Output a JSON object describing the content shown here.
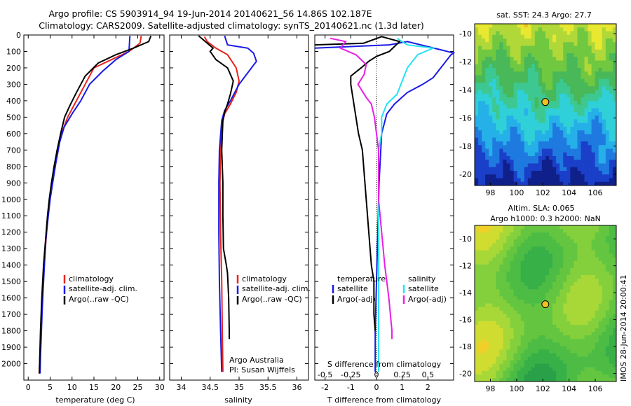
{
  "title": {
    "line1": "Argo profile: CS 5903914_94 19-Jun-2014 20140621_56 14.86S 102.187E",
    "line2": "Climatology: CARS2009. Satellite-adjusted climatology: synTS_20140621.nc (1.3d later)"
  },
  "credit": {
    "line1": "Argo Australia",
    "line2": "PI: Susan Wijffels"
  },
  "stamp": "IMOS 28-Jun-2014 20:00:41",
  "maps": {
    "sst_title": "sat. SST: 24.3 Argo: 27.7",
    "sla_title_1": "Altim. SLA: 0.065",
    "sla_title_2": "Argo h1000: 0.3 h2000: NaN"
  },
  "colors": {
    "climatology": "#e8251e",
    "satellite": "#1a1ae6",
    "argo": "#000000",
    "sal_sat": "#24e4f0",
    "sal_argo": "#e81ee8"
  },
  "chart_data": [
    {
      "type": "line",
      "name": "temperature",
      "xlabel": "temperature (deg C)",
      "ylabel": "",
      "xlim": [
        -1,
        31
      ],
      "ylim": [
        2100,
        0
      ],
      "xticks": [
        "0",
        "5",
        "10",
        "15",
        "20",
        "25",
        "30"
      ],
      "xtickvals": [
        0,
        5,
        10,
        15,
        20,
        25,
        30
      ],
      "yticks": [
        "0",
        "100",
        "200",
        "300",
        "400",
        "500",
        "600",
        "700",
        "800",
        "900",
        "1000",
        "1100",
        "1200",
        "1300",
        "1400",
        "1500",
        "1600",
        "1700",
        "1800",
        "1900",
        "2000"
      ],
      "ytickvals": [
        0,
        100,
        200,
        300,
        400,
        500,
        600,
        700,
        800,
        900,
        1000,
        1100,
        1200,
        1300,
        1400,
        1500,
        1600,
        1700,
        1800,
        1900,
        2000
      ],
      "legend": [
        "climatology",
        "satellite-adj. clim.",
        "Argo(..raw -QC)"
      ],
      "series": [
        {
          "name": "climatology",
          "color": "#e8251e",
          "points": [
            [
              25.8,
              5
            ],
            [
              25.5,
              50
            ],
            [
              23,
              100
            ],
            [
              19,
              150
            ],
            [
              15,
              200
            ],
            [
              13,
              300
            ],
            [
              11,
              400
            ],
            [
              9,
              500
            ],
            [
              7.6,
              600
            ],
            [
              6.6,
              700
            ],
            [
              6,
              800
            ],
            [
              5.4,
              900
            ],
            [
              4.9,
              1000
            ],
            [
              4.5,
              1100
            ],
            [
              4.2,
              1200
            ],
            [
              3.9,
              1300
            ],
            [
              3.6,
              1400
            ],
            [
              3.4,
              1500
            ],
            [
              3.2,
              1600
            ],
            [
              3.0,
              1700
            ],
            [
              2.9,
              1800
            ],
            [
              2.75,
              1900
            ],
            [
              2.6,
              2000
            ],
            [
              2.5,
              2060
            ]
          ]
        },
        {
          "name": "satellite-adj. clim.",
          "color": "#1a1ae6",
          "points": [
            [
              23.2,
              5
            ],
            [
              23,
              100
            ],
            [
              20,
              150
            ],
            [
              17,
              220
            ],
            [
              14,
              300
            ],
            [
              12,
              400
            ],
            [
              10,
              480
            ],
            [
              8.2,
              560
            ],
            [
              7.2,
              650
            ],
            [
              6.3,
              780
            ],
            [
              5.7,
              880
            ],
            [
              5.0,
              1000
            ],
            [
              4.5,
              1120
            ],
            [
              4.0,
              1250
            ],
            [
              3.7,
              1400
            ],
            [
              3.4,
              1550
            ],
            [
              3.15,
              1700
            ],
            [
              2.95,
              1850
            ],
            [
              2.8,
              1950
            ],
            [
              2.7,
              2060
            ]
          ]
        },
        {
          "name": "Argo(..raw -QC)",
          "color": "#000000",
          "points": [
            [
              28,
              5
            ],
            [
              27.5,
              40
            ],
            [
              24,
              80
            ],
            [
              20,
              120
            ],
            [
              16,
              170
            ],
            [
              13,
              250
            ],
            [
              11,
              350
            ],
            [
              9.5,
              430
            ],
            [
              8.3,
              500
            ],
            [
              7.4,
              600
            ],
            [
              6.6,
              700
            ],
            [
              5.9,
              800
            ],
            [
              5.3,
              900
            ],
            [
              4.8,
              1000
            ],
            [
              4.4,
              1100
            ],
            [
              4.1,
              1200
            ],
            [
              3.8,
              1300
            ],
            [
              3.5,
              1400
            ],
            [
              3.3,
              1500
            ],
            [
              3.1,
              1600
            ],
            [
              2.95,
              1700
            ],
            [
              2.8,
              1800
            ],
            [
              2.7,
              1900
            ],
            [
              2.6,
              2000
            ],
            [
              2.55,
              2060
            ]
          ]
        }
      ]
    },
    {
      "type": "line",
      "name": "salinity",
      "xlabel": "salinity",
      "ylabel": "",
      "xlim": [
        33.8,
        36.2
      ],
      "ylim": [
        2100,
        0
      ],
      "xticks": [
        "34",
        "34.5",
        "35",
        "35.5",
        "36"
      ],
      "xtickvals": [
        34,
        34.5,
        35,
        35.5,
        36
      ],
      "legend": [
        "climatology",
        "satellite-adj. clim.",
        "Argo(..raw -QC)"
      ],
      "series": [
        {
          "name": "climatology",
          "color": "#e8251e",
          "points": [
            [
              34.4,
              10
            ],
            [
              34.45,
              40
            ],
            [
              34.6,
              80
            ],
            [
              34.8,
              120
            ],
            [
              34.95,
              200
            ],
            [
              35,
              280
            ],
            [
              34.95,
              350
            ],
            [
              34.85,
              420
            ],
            [
              34.75,
              480
            ],
            [
              34.7,
              550
            ],
            [
              34.68,
              700
            ],
            [
              34.67,
              900
            ],
            [
              34.68,
              1200
            ],
            [
              34.7,
              1500
            ],
            [
              34.71,
              1800
            ],
            [
              34.72,
              2050
            ]
          ]
        },
        {
          "name": "satellite-adj. clim.",
          "color": "#1a1ae6",
          "points": [
            [
              34.75,
              5
            ],
            [
              34.8,
              60
            ],
            [
              35.15,
              80
            ],
            [
              35.25,
              110
            ],
            [
              35.3,
              160
            ],
            [
              35.15,
              230
            ],
            [
              35,
              300
            ],
            [
              34.85,
              400
            ],
            [
              34.75,
              460
            ],
            [
              34.7,
              520
            ],
            [
              34.66,
              700
            ],
            [
              34.65,
              900
            ],
            [
              34.65,
              1200
            ],
            [
              34.66,
              1500
            ],
            [
              34.68,
              1800
            ],
            [
              34.7,
              2050
            ]
          ]
        },
        {
          "name": "Argo(..raw -QC)",
          "color": "#000000",
          "points": [
            [
              34.3,
              5
            ],
            [
              34.45,
              50
            ],
            [
              34.55,
              80
            ],
            [
              34.5,
              100
            ],
            [
              34.6,
              150
            ],
            [
              34.8,
              200
            ],
            [
              34.9,
              280
            ],
            [
              34.85,
              360
            ],
            [
              34.8,
              420
            ],
            [
              34.75,
              470
            ],
            [
              34.72,
              520
            ],
            [
              34.7,
              700
            ],
            [
              34.72,
              900
            ],
            [
              34.72,
              1100
            ],
            [
              34.73,
              1300
            ],
            [
              34.78,
              1400
            ],
            [
              34.8,
              1450
            ],
            [
              34.82,
              1600
            ],
            [
              34.83,
              1800
            ],
            [
              34.83,
              1850
            ]
          ]
        }
      ]
    },
    {
      "type": "line",
      "name": "differences",
      "xlabel": "T difference from climatology",
      "x2label": "S difference from climatology",
      "xlim": [
        -2.4,
        3
      ],
      "ylim": [
        2100,
        0
      ],
      "xticks": [
        "-2",
        "-1",
        "0",
        "1",
        "2"
      ],
      "xtickvals": [
        -2,
        -1,
        0,
        1,
        2
      ],
      "x2ticks": [
        "-0.5",
        "-0.25",
        "0",
        "0.25",
        "0.5"
      ],
      "x2tickvals": [
        -0.5,
        -0.25,
        0,
        0.25,
        0.5
      ],
      "legend_groups": [
        {
          "heading": "temperature",
          "items": [
            "satellite",
            "Argo(-adj)"
          ]
        },
        {
          "heading": "salinity",
          "items": [
            "satellite",
            "Argo(-adj)"
          ]
        }
      ],
      "series": [
        {
          "name": "temperature satellite",
          "color": "#1a1ae6",
          "points": [
            [
              -2.4,
              80
            ],
            [
              0.5,
              60
            ],
            [
              1.2,
              40
            ],
            [
              2.5,
              90
            ],
            [
              3,
              110
            ],
            [
              2.9,
              120
            ],
            [
              2.7,
              160
            ],
            [
              2.5,
              200
            ],
            [
              2.2,
              260
            ],
            [
              1.8,
              300
            ],
            [
              1.2,
              350
            ],
            [
              0.7,
              420
            ],
            [
              0.4,
              480
            ],
            [
              0.2,
              600
            ],
            [
              0.1,
              900
            ],
            [
              0.05,
              1200
            ],
            [
              0,
              1500
            ],
            [
              -0.05,
              1800
            ],
            [
              -0.05,
              2050
            ]
          ]
        },
        {
          "name": "temperature Argo(-adj)",
          "color": "#000000",
          "points": [
            [
              -2.4,
              60
            ],
            [
              -0.5,
              50
            ],
            [
              0.2,
              10
            ],
            [
              0.9,
              40
            ],
            [
              0.5,
              100
            ],
            [
              0,
              130
            ],
            [
              -0.3,
              160
            ],
            [
              -0.6,
              200
            ],
            [
              -1,
              250
            ],
            [
              -1,
              300
            ],
            [
              -0.9,
              400
            ],
            [
              -0.8,
              500
            ],
            [
              -0.7,
              600
            ],
            [
              -0.55,
              700
            ],
            [
              -0.5,
              800
            ],
            [
              -0.45,
              900
            ],
            [
              -0.4,
              1000
            ],
            [
              -0.3,
              1200
            ],
            [
              -0.25,
              1300
            ],
            [
              -0.2,
              1400
            ],
            [
              -0.1,
              1500
            ],
            [
              -0.1,
              1700
            ],
            [
              -0.05,
              1800
            ]
          ]
        },
        {
          "name": "salinity satellite",
          "color": "#24e4f0",
          "points": [
            [
              0.2,
              20
            ],
            [
              0.3,
              60
            ],
            [
              0.55,
              80
            ],
            [
              0.4,
              120
            ],
            [
              0.3,
              200
            ],
            [
              0.25,
              280
            ],
            [
              0.2,
              360
            ],
            [
              0.1,
              420
            ],
            [
              0.05,
              500
            ],
            [
              0.05,
              600
            ],
            [
              0.02,
              700
            ],
            [
              0.02,
              900
            ],
            [
              0.02,
              1200
            ],
            [
              0.02,
              1500
            ],
            [
              0.02,
              1800
            ],
            [
              0.02,
              2050
            ]
          ]
        },
        {
          "name": "salinity Argo(-adj)",
          "color": "#e81ee8",
          "points": [
            [
              -0.45,
              20
            ],
            [
              -0.3,
              40
            ],
            [
              -0.35,
              80
            ],
            [
              -0.2,
              120
            ],
            [
              -0.1,
              180
            ],
            [
              -0.12,
              240
            ],
            [
              -0.18,
              300
            ],
            [
              -0.1,
              380
            ],
            [
              -0.05,
              420
            ],
            [
              -0.02,
              500
            ],
            [
              0,
              600
            ],
            [
              0.02,
              700
            ],
            [
              0.02,
              800
            ],
            [
              0.02,
              900
            ],
            [
              0.02,
              1000
            ],
            [
              0.05,
              1200
            ],
            [
              0.08,
              1400
            ],
            [
              0.12,
              1600
            ],
            [
              0.15,
              1800
            ],
            [
              0.15,
              1850
            ]
          ]
        }
      ]
    },
    {
      "type": "heatmap",
      "name": "sst map",
      "xticks": [
        "98",
        "100",
        "102",
        "104",
        "106"
      ],
      "xtickvals": [
        98,
        100,
        102,
        104,
        106
      ],
      "yticks": [
        "-10",
        "-12",
        "-14",
        "-16",
        "-18",
        "-20"
      ],
      "ytickvals": [
        -10,
        -12,
        -14,
        -16,
        -18,
        -20
      ],
      "xlim": [
        96.8,
        107.6
      ],
      "ylim": [
        -20.8,
        -9.3
      ],
      "marker": [
        102.19,
        -14.86
      ]
    },
    {
      "type": "heatmap",
      "name": "sla map",
      "xticks": [
        "98",
        "100",
        "102",
        "104",
        "106"
      ],
      "xtickvals": [
        98,
        100,
        102,
        104,
        106
      ],
      "yticks": [
        "-10",
        "-12",
        "-14",
        "-16",
        "-18",
        "-20"
      ],
      "ytickvals": [
        -10,
        -12,
        -14,
        -16,
        -18,
        -20
      ],
      "xlim": [
        96.8,
        107.6
      ],
      "ylim": [
        -20.6,
        -9.0
      ],
      "marker": [
        102.19,
        -14.86
      ]
    }
  ]
}
